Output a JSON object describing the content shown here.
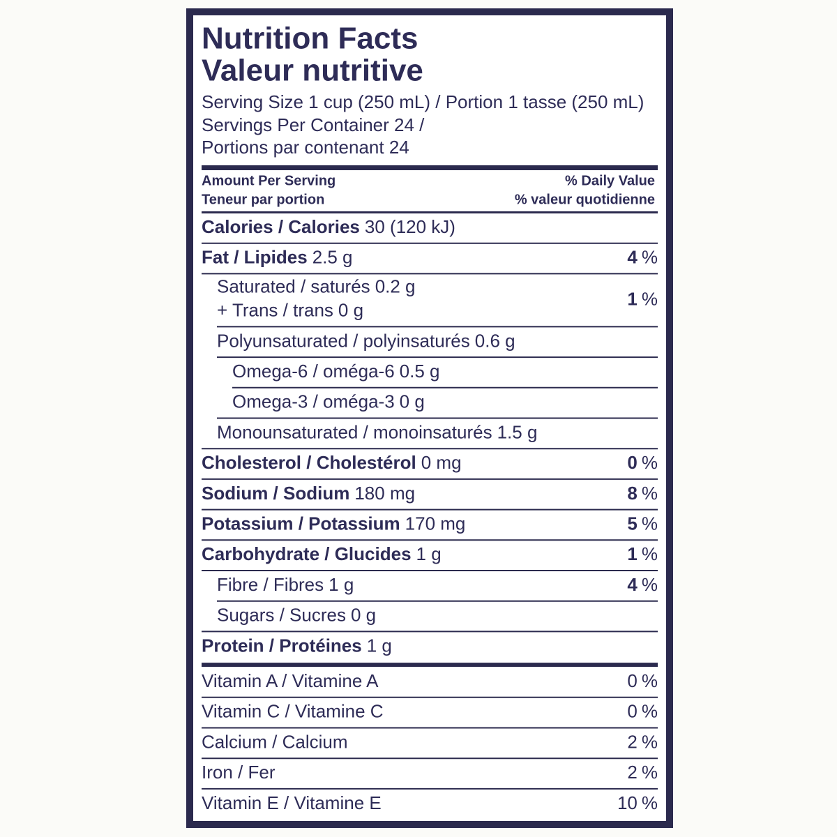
{
  "title": "Nutrition Facts",
  "title_fr": "Valeur nutritive",
  "serving": [
    "Serving Size 1 cup (250 mL) / Portion 1 tasse (250 mL)",
    "Servings Per Container 24 /",
    "Portions par contenant 24"
  ],
  "header": {
    "amount": [
      "Amount Per Serving",
      "Teneur par portion"
    ],
    "daily_value": [
      "% Daily Value",
      "% valeur quotidienne"
    ]
  },
  "dv_unit": "%",
  "nutrients": [
    {
      "label": "Calories / Calories",
      "amount": "30 (120 kJ)"
    },
    {
      "label": "Fat / Lipides",
      "amount": "2.5 g",
      "dv": "4",
      "sub": [
        {
          "label": "Saturated / saturés",
          "amount": "0.2 g",
          "dv": "1",
          "trans": {
            "label": "+ Trans / trans",
            "amount": "0 g"
          }
        },
        {
          "label": "Polyunsaturated / polyinsaturés",
          "amount": "0.6 g",
          "sub": [
            {
              "label": "Omega-6 / oméga-6",
              "amount": "0.5 g"
            },
            {
              "label": "Omega-3 / oméga-3",
              "amount": "0 g"
            }
          ]
        },
        {
          "label": "Monounsaturated / monoinsaturés",
          "amount": "1.5 g"
        }
      ]
    },
    {
      "label": "Cholesterol / Cholestérol",
      "amount": "0 mg",
      "dv": "0"
    },
    {
      "label": "Sodium / Sodium",
      "amount": "180 mg",
      "dv": "8"
    },
    {
      "label": "Potassium / Potassium",
      "amount": "170 mg",
      "dv": "5"
    },
    {
      "label": "Carbohydrate / Glucides",
      "amount": "1 g",
      "dv": "1",
      "sub": [
        {
          "label": "Fibre / Fibres",
          "amount": "1 g",
          "dv": "4"
        },
        {
          "label": "Sugars / Sucres",
          "amount": "0 g"
        }
      ]
    },
    {
      "label": "Protein / Protéines",
      "amount": "1 g"
    }
  ],
  "vitamins": [
    {
      "label": "Vitamin A / Vitamine A",
      "dv": "0"
    },
    {
      "label": "Vitamin C / Vitamine C",
      "dv": "0"
    },
    {
      "label": "Calcium / Calcium",
      "dv": "2"
    },
    {
      "label": "Iron / Fer",
      "dv": "2"
    },
    {
      "label": "Vitamin E / Vitamine E",
      "dv": "10"
    }
  ]
}
